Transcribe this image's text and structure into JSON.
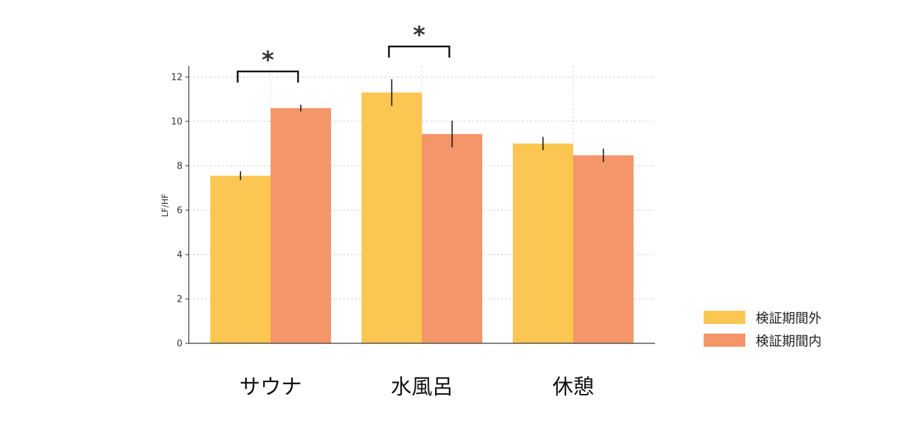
{
  "chart_data": {
    "type": "bar",
    "categories": [
      "サウナ",
      "水風呂",
      "休憩"
    ],
    "series": [
      {
        "name": "検証期間外",
        "color": "#FBC651",
        "values": [
          7.55,
          11.3,
          9.0
        ],
        "errors": [
          0.2,
          0.6,
          0.3
        ]
      },
      {
        "name": "検証期間内",
        "color": "#F4956A",
        "values": [
          10.6,
          9.43,
          8.47
        ],
        "errors": [
          0.15,
          0.6,
          0.3
        ]
      }
    ],
    "xlabel": "",
    "ylabel": "LF/HF",
    "ylim": [
      0,
      12.5
    ],
    "yticks": [
      0,
      2,
      4,
      6,
      8,
      10,
      12
    ],
    "grid": true,
    "legend_position": "bottom-right",
    "significance": [
      {
        "category": "サウナ",
        "marker": "*"
      },
      {
        "category": "水風呂",
        "marker": "*"
      }
    ]
  }
}
